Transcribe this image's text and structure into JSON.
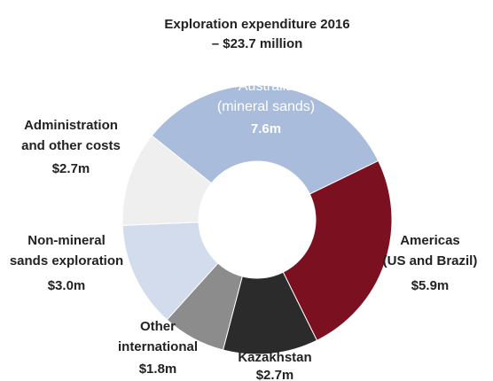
{
  "chart_data": {
    "type": "donut",
    "title": "Exploration expenditure 2016\n– $23.7 million",
    "categories": [
      "Australia\n(mineral sands)",
      "Americas\n(US and Brazil)",
      "Kazakhstan",
      "Other\ninternational",
      "Non-mineral\nsands exploration",
      "Administration\nand other costs"
    ],
    "values": [
      7.6,
      5.9,
      2.7,
      1.8,
      3.0,
      2.7
    ],
    "value_labels": [
      "7.6m",
      "$5.9m",
      "$2.7m",
      "$1.8m",
      "$3.0m",
      "$2.7m"
    ],
    "colors": [
      "#a9bcdb",
      "#7a1020",
      "#2b2b2b",
      "#8c8c8c",
      "#d3dcec",
      "#efefef"
    ]
  }
}
